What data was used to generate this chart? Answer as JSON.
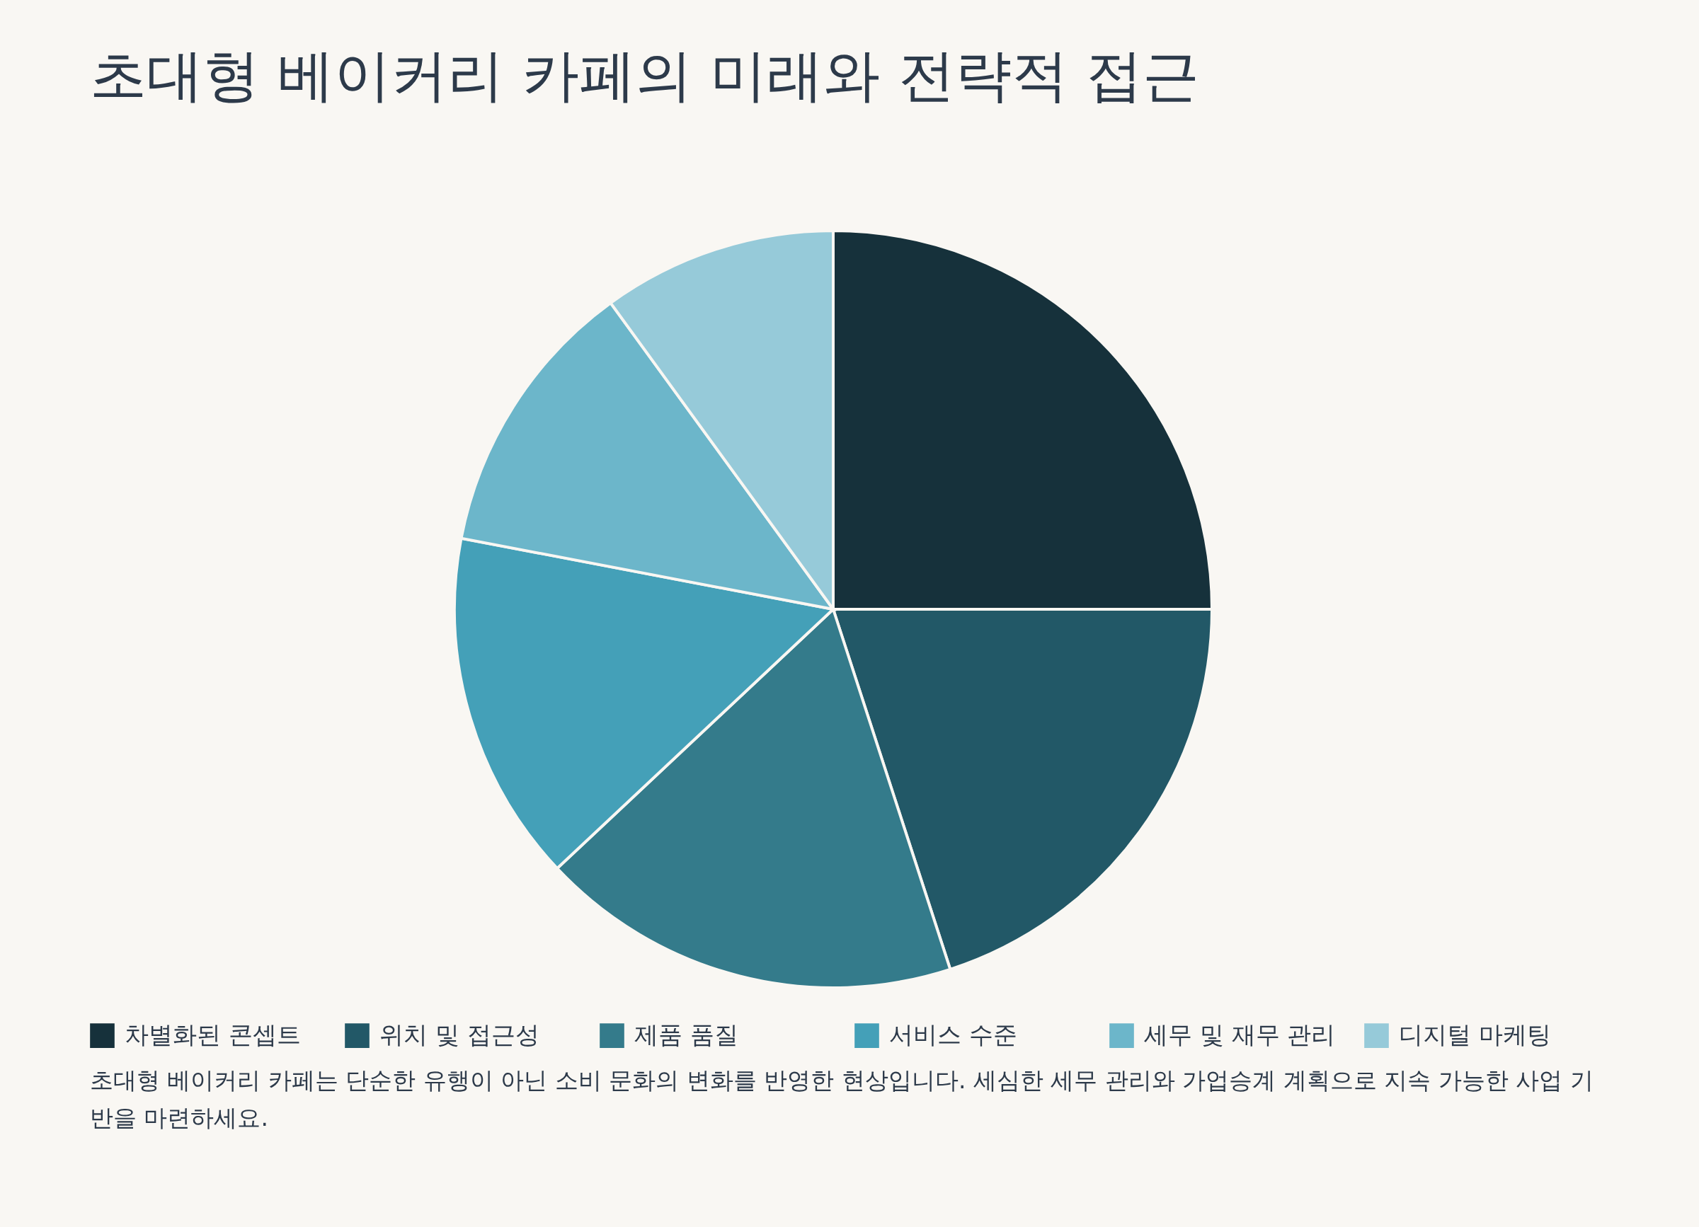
{
  "chart_data": {
    "type": "pie",
    "title": "초대형 베이커리 카페의 미래와 전략적 접근",
    "categories": [
      "차별화된 콘셉트",
      "위치 및 접근성",
      "제품 품질",
      "서비스 수준",
      "세무 및 재무 관리",
      "디지털 마케팅"
    ],
    "values": [
      25,
      20,
      18,
      15,
      12,
      10
    ],
    "colors": [
      "#16313b",
      "#225867",
      "#347b8b",
      "#44a0b8",
      "#6cb6ca",
      "#96cad9"
    ],
    "legend": "bottom",
    "annotations": [
      "초대형 베이커리 카페는 단순한 유행이 아닌 소비 문화의 변화를 반영한 현상입니다. 세심한 세무 관리와 가업승계 계획으로 지속 가능한 사업 기반을 마련하세요."
    ]
  }
}
